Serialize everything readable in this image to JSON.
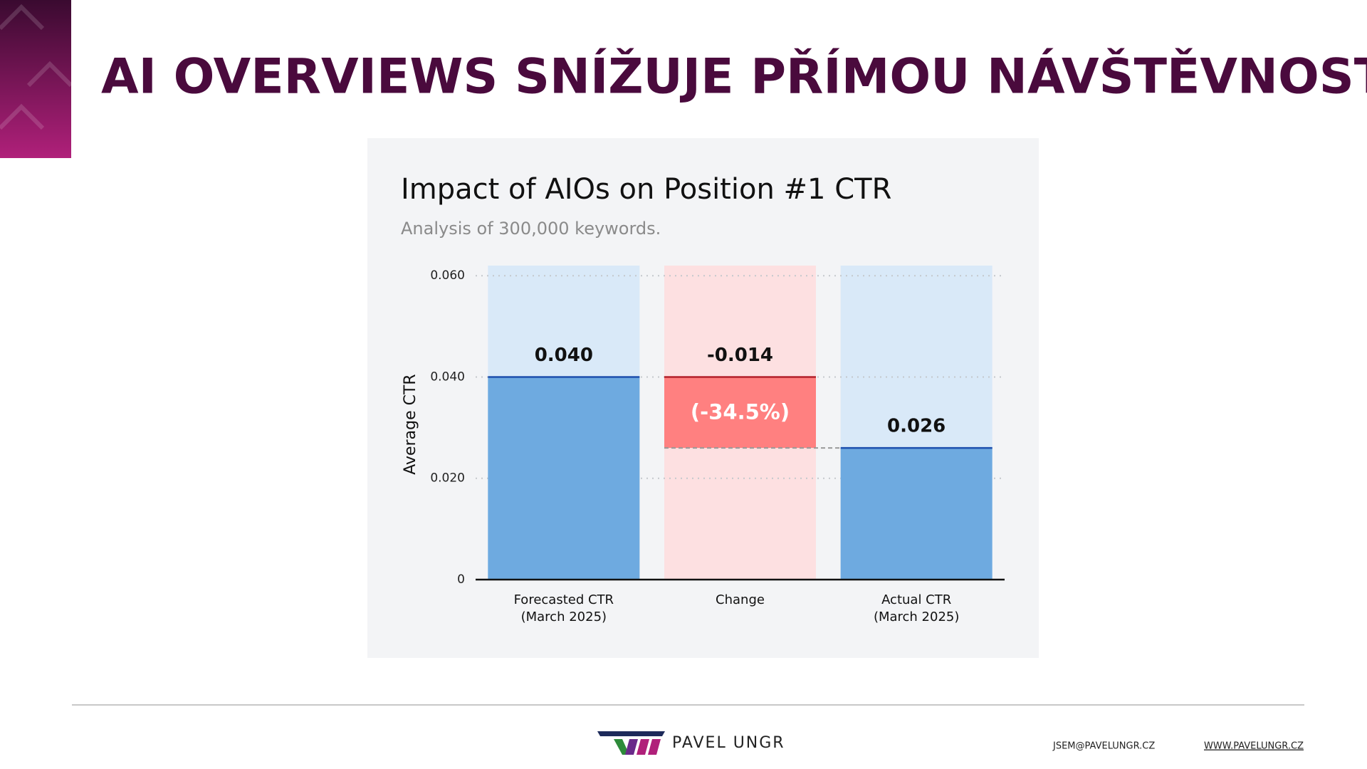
{
  "header": {
    "title": "AI OVERVIEWS SNÍŽUJE PŘÍMOU NÁVŠTĚVNOST"
  },
  "chart_data": {
    "type": "waterfall",
    "title": "Impact of AIOs on Position #1 CTR",
    "subtitle": "Analysis of 300,000 keywords.",
    "y_label": "Average CTR",
    "categories": [
      [
        "Forecasted CTR",
        "(March 2025)"
      ],
      [
        "Change"
      ],
      [
        "Actual CTR",
        "(March 2025)"
      ]
    ],
    "measures": [
      "absolute",
      "relative",
      "total"
    ],
    "values": [
      0.04,
      -0.014,
      0.026
    ],
    "value_labels": [
      "0.040",
      "-0.014",
      "0.026"
    ],
    "annotation": "(-34.5%)",
    "colors": [
      "#6eaae0",
      "#ff8080",
      "#6eaae0"
    ],
    "edge_colors": [
      "#1d4fae",
      "#b3202a",
      "#1d4fae"
    ],
    "band_colors": [
      "#d9e9f8",
      "#fde0e1",
      "#d9e9f8"
    ],
    "ylim": [
      0,
      0.062
    ],
    "yticks": [
      0,
      {
        "value": 0.02,
        "label": "0.020"
      },
      {
        "value": 0.04,
        "label": "0.040"
      },
      {
        "value": 0.06,
        "label": "0.060"
      }
    ],
    "grid": true
  },
  "footer": {
    "brand": "PAVEL UNGR",
    "email": "JSEM@PAVELUNGR.CZ",
    "website": "WWW.PAVELUNGR.CZ"
  }
}
